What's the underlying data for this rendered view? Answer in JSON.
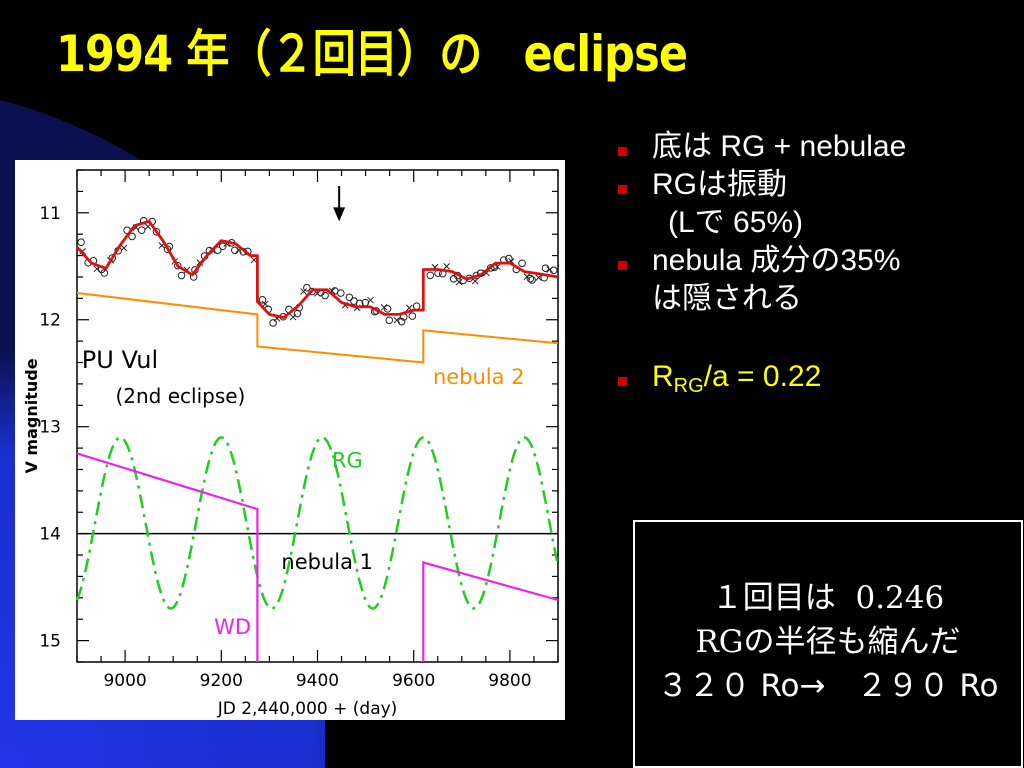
{
  "slide": {
    "title": "1994 年（２回目）の　eclipse",
    "bullets": [
      {
        "text": "底は RG + nebulae"
      },
      {
        "text": "RGは振動"
      },
      {
        "text": "(Lで 65%)"
      },
      {
        "text": "nebula 成分の35%"
      },
      {
        "text": "は隠される"
      },
      {
        "pre": "R",
        "sub": "RG",
        "post": "/a = 0.22"
      }
    ],
    "note": {
      "line1_prefix": "１回目は",
      "line1_value": "0.246",
      "line2_prefix": "RG",
      "line2_rest": "の半径も縮んだ",
      "line3": "３２０ Ro→　２９０ Ro"
    },
    "colors": {
      "background": "#000000",
      "title": "#ffff00",
      "bullet_marker": "#cc0000",
      "wedge": "#1a2fd0"
    }
  },
  "chart_data": {
    "type": "line",
    "xlabel": "JD 2,440,000 + (day)",
    "ylabel": "V magnitude",
    "xlim": [
      8900,
      9900
    ],
    "ylim": [
      15.2,
      10.6
    ],
    "y_inverted": true,
    "x_ticks": [
      9000,
      9200,
      9400,
      9600,
      9800
    ],
    "y_ticks": [
      11,
      12,
      13,
      14,
      15
    ],
    "annotations": {
      "object": "PU Vul",
      "event": "(2nd eclipse)",
      "arrow_x": 9445,
      "nebula1_level": 14.0
    },
    "series": [
      {
        "name": "nebula 2",
        "color": "#ff8c00",
        "style": "solid",
        "x": [
          8900,
          9275,
          9275,
          9620,
          9620,
          9900
        ],
        "y": [
          11.75,
          11.95,
          12.25,
          12.4,
          12.1,
          12.22
        ]
      },
      {
        "name": "RG",
        "color": "#22cc22",
        "style": "dashdot",
        "mean": 13.9,
        "amplitude": 0.8,
        "period": 210,
        "peak_x": 8990
      },
      {
        "name": "WD",
        "color": "#ee22ee",
        "style": "solid",
        "x": [
          8900,
          9275,
          9275,
          null,
          9620,
          9620,
          9900
        ],
        "y": [
          13.25,
          13.77,
          15.2,
          null,
          15.2,
          14.27,
          14.62
        ]
      },
      {
        "name": "",
        "color": "#dd1111",
        "style": "solid",
        "x": [
          8900,
          8930,
          8960,
          8990,
          9020,
          9050,
          9080,
          9110,
          9140,
          9170,
          9200,
          9230,
          9260,
          9275,
          9275,
          9300,
          9330,
          9360,
          9390,
          9420,
          9450,
          9480,
          9510,
          9540,
          9570,
          9600,
          9620,
          9620,
          9650,
          9680,
          9710,
          9740,
          9770,
          9800,
          9830,
          9860,
          9900
        ],
        "y": [
          11.32,
          11.47,
          11.52,
          11.3,
          11.12,
          11.08,
          11.27,
          11.5,
          11.58,
          11.4,
          11.26,
          11.29,
          11.4,
          11.4,
          11.83,
          11.95,
          11.98,
          11.87,
          11.72,
          11.72,
          11.84,
          11.88,
          11.88,
          11.95,
          11.95,
          11.91,
          11.91,
          11.53,
          11.53,
          11.55,
          11.62,
          11.58,
          11.47,
          11.47,
          11.55,
          11.57,
          11.6
        ]
      }
    ]
  }
}
